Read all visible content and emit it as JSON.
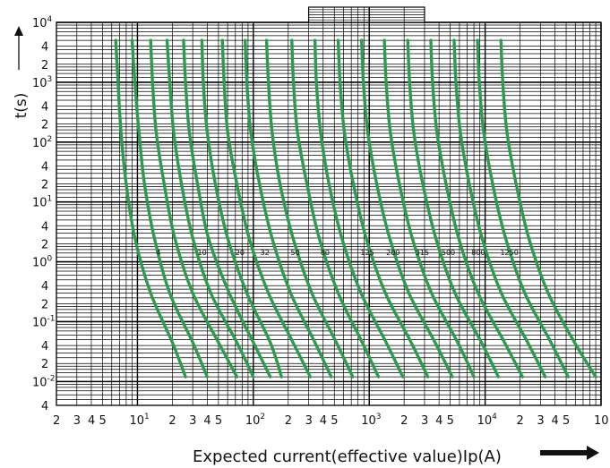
{
  "chart_data": {
    "type": "line",
    "title": "",
    "xlabel": "Expected current(effective value)Ip(A)",
    "ylabel": "t(s)",
    "x_scale": "log",
    "y_scale": "log",
    "xlim": [
      2,
      100000
    ],
    "ylim": [
      0.004,
      10000
    ],
    "grid": true,
    "x_tick_labels": [
      {
        "value": 2,
        "label": "2",
        "exp": ""
      },
      {
        "value": 3,
        "label": "3",
        "exp": ""
      },
      {
        "value": 4,
        "label": "4",
        "exp": ""
      },
      {
        "value": 5,
        "label": "5",
        "exp": ""
      },
      {
        "value": 10,
        "label": "10",
        "exp": "1"
      },
      {
        "value": 20,
        "label": "2",
        "exp": ""
      },
      {
        "value": 30,
        "label": "3",
        "exp": ""
      },
      {
        "value": 40,
        "label": "4",
        "exp": ""
      },
      {
        "value": 50,
        "label": "5",
        "exp": ""
      },
      {
        "value": 100,
        "label": "10",
        "exp": "2"
      },
      {
        "value": 200,
        "label": "2",
        "exp": ""
      },
      {
        "value": 300,
        "label": "3",
        "exp": ""
      },
      {
        "value": 400,
        "label": "4",
        "exp": ""
      },
      {
        "value": 500,
        "label": "5",
        "exp": ""
      },
      {
        "value": 1000,
        "label": "10",
        "exp": "3"
      },
      {
        "value": 2000,
        "label": "2",
        "exp": ""
      },
      {
        "value": 3000,
        "label": "3",
        "exp": ""
      },
      {
        "value": 4000,
        "label": "4",
        "exp": ""
      },
      {
        "value": 5000,
        "label": "5",
        "exp": ""
      },
      {
        "value": 10000,
        "label": "10",
        "exp": "4"
      },
      {
        "value": 20000,
        "label": "2",
        "exp": ""
      },
      {
        "value": 30000,
        "label": "3",
        "exp": ""
      },
      {
        "value": 40000,
        "label": "4",
        "exp": ""
      },
      {
        "value": 50000,
        "label": "5",
        "exp": ""
      },
      {
        "value": 100000,
        "label": "10",
        "exp": ""
      }
    ],
    "y_tick_labels": [
      {
        "value": 10000,
        "label": "10",
        "exp": "4"
      },
      {
        "value": 4000,
        "label": "4",
        "exp": ""
      },
      {
        "value": 2000,
        "label": "2",
        "exp": ""
      },
      {
        "value": 1000,
        "label": "10",
        "exp": "3"
      },
      {
        "value": 400,
        "label": "4",
        "exp": ""
      },
      {
        "value": 200,
        "label": "2",
        "exp": ""
      },
      {
        "value": 100,
        "label": "10",
        "exp": "2"
      },
      {
        "value": 40,
        "label": "4",
        "exp": ""
      },
      {
        "value": 20,
        "label": "2",
        "exp": ""
      },
      {
        "value": 10,
        "label": "10",
        "exp": "1"
      },
      {
        "value": 4,
        "label": "4",
        "exp": ""
      },
      {
        "value": 2,
        "label": "2",
        "exp": ""
      },
      {
        "value": 1,
        "label": "10",
        "exp": "0"
      },
      {
        "value": 0.4,
        "label": "4",
        "exp": ""
      },
      {
        "value": 0.2,
        "label": "2",
        "exp": ""
      },
      {
        "value": 0.1,
        "label": "10",
        "exp": "-1"
      },
      {
        "value": 0.04,
        "label": "4",
        "exp": ""
      },
      {
        "value": 0.02,
        "label": "2",
        "exp": ""
      },
      {
        "value": 0.01,
        "label": "10",
        "exp": "-2"
      },
      {
        "value": 0.004,
        "label": "4",
        "exp": ""
      }
    ],
    "curve_labels": [
      {
        "text": "4",
        "x": 14.5,
        "y": 1.3
      },
      {
        "text": "10",
        "x": 33,
        "y": 1.3
      },
      {
        "text": "20",
        "x": 70,
        "y": 1.3
      },
      {
        "text": "32",
        "x": 115,
        "y": 1.3
      },
      {
        "text": "50",
        "x": 210,
        "y": 1.3
      },
      {
        "text": "80",
        "x": 380,
        "y": 1.3
      },
      {
        "text": "125",
        "x": 840,
        "y": 1.3
      },
      {
        "text": "200",
        "x": 1400,
        "y": 1.3
      },
      {
        "text": "315",
        "x": 2500,
        "y": 1.3
      },
      {
        "text": "500",
        "x": 4200,
        "y": 1.3
      },
      {
        "text": "800",
        "x": 7600,
        "y": 1.3
      },
      {
        "text": "1250",
        "x": 13500,
        "y": 1.3
      }
    ],
    "series": [
      {
        "points": [
          [
            6.5,
            5000
          ],
          [
            6.8,
            1000
          ],
          [
            7.2,
            150
          ],
          [
            8,
            20
          ],
          [
            9.5,
            2.5
          ],
          [
            13,
            0.3
          ],
          [
            20,
            0.045
          ],
          [
            26,
            0.012
          ]
        ]
      },
      {
        "points": [
          [
            9,
            5000
          ],
          [
            9.5,
            1000
          ],
          [
            10.3,
            150
          ],
          [
            11.5,
            20
          ],
          [
            14,
            2.5
          ],
          [
            19,
            0.3
          ],
          [
            30,
            0.045
          ],
          [
            40,
            0.012
          ]
        ]
      },
      {
        "points": [
          [
            13,
            5000
          ],
          [
            13.5,
            1000
          ],
          [
            14.5,
            150
          ],
          [
            17,
            20
          ],
          [
            21,
            2.5
          ],
          [
            30,
            0.3
          ],
          [
            50,
            0.045
          ],
          [
            72,
            0.012
          ]
        ]
      },
      {
        "points": [
          [
            18,
            5000
          ],
          [
            19,
            1000
          ],
          [
            20.5,
            150
          ],
          [
            24,
            20
          ],
          [
            30,
            2.5
          ],
          [
            43,
            0.3
          ],
          [
            72,
            0.045
          ],
          [
            100,
            0.012
          ]
        ]
      },
      {
        "points": [
          [
            25,
            5000
          ],
          [
            26,
            1000
          ],
          [
            28,
            150
          ],
          [
            33,
            20
          ],
          [
            41,
            2.5
          ],
          [
            62,
            0.3
          ],
          [
            100,
            0.045
          ],
          [
            140,
            0.012
          ]
        ]
      },
      {
        "points": [
          [
            36,
            5000
          ],
          [
            37,
            1000
          ],
          [
            40,
            150
          ],
          [
            47,
            20
          ],
          [
            60,
            2.5
          ],
          [
            88,
            0.3
          ],
          [
            140,
            0.045
          ],
          [
            175,
            0.012
          ]
        ]
      },
      {
        "points": [
          [
            54,
            5000
          ],
          [
            56,
            1000
          ],
          [
            60,
            150
          ],
          [
            72,
            20
          ],
          [
            92,
            2.5
          ],
          [
            135,
            0.3
          ],
          [
            220,
            0.045
          ],
          [
            310,
            0.012
          ]
        ]
      },
      {
        "points": [
          [
            85,
            5000
          ],
          [
            88,
            1000
          ],
          [
            95,
            150
          ],
          [
            113,
            20
          ],
          [
            145,
            2.5
          ],
          [
            210,
            0.3
          ],
          [
            340,
            0.045
          ],
          [
            470,
            0.012
          ]
        ]
      },
      {
        "points": [
          [
            130,
            5000
          ],
          [
            135,
            1000
          ],
          [
            145,
            150
          ],
          [
            170,
            20
          ],
          [
            220,
            2.5
          ],
          [
            320,
            0.3
          ],
          [
            520,
            0.045
          ],
          [
            720,
            0.012
          ]
        ]
      },
      {
        "points": [
          [
            215,
            5000
          ],
          [
            222,
            1000
          ],
          [
            240,
            150
          ],
          [
            290,
            20
          ],
          [
            370,
            2.5
          ],
          [
            540,
            0.3
          ],
          [
            870,
            0.045
          ],
          [
            1200,
            0.012
          ]
        ]
      },
      {
        "points": [
          [
            340,
            5000
          ],
          [
            350,
            1000
          ],
          [
            380,
            150
          ],
          [
            450,
            20
          ],
          [
            580,
            2.5
          ],
          [
            850,
            0.3
          ],
          [
            1400,
            0.045
          ],
          [
            1950,
            0.012
          ]
        ]
      },
      {
        "points": [
          [
            540,
            5000
          ],
          [
            560,
            1000
          ],
          [
            610,
            150
          ],
          [
            730,
            20
          ],
          [
            940,
            2.5
          ],
          [
            1380,
            0.3
          ],
          [
            2300,
            0.045
          ],
          [
            3200,
            0.012
          ]
        ]
      },
      {
        "points": [
          [
            860,
            5000
          ],
          [
            890,
            1000
          ],
          [
            970,
            150
          ],
          [
            1160,
            20
          ],
          [
            1500,
            2.5
          ],
          [
            2200,
            0.3
          ],
          [
            3700,
            0.045
          ],
          [
            5200,
            0.012
          ]
        ]
      },
      {
        "points": [
          [
            1350,
            5000
          ],
          [
            1400,
            1000
          ],
          [
            1520,
            150
          ],
          [
            1820,
            20
          ],
          [
            2350,
            2.5
          ],
          [
            3450,
            0.3
          ],
          [
            5800,
            0.045
          ],
          [
            8000,
            0.012
          ]
        ]
      },
      {
        "points": [
          [
            2150,
            5000
          ],
          [
            2230,
            1000
          ],
          [
            2420,
            150
          ],
          [
            2900,
            20
          ],
          [
            3750,
            2.5
          ],
          [
            5500,
            0.3
          ],
          [
            9300,
            0.045
          ],
          [
            13000,
            0.012
          ]
        ]
      },
      {
        "points": [
          [
            3400,
            5000
          ],
          [
            3520,
            1000
          ],
          [
            3830,
            150
          ],
          [
            4600,
            20
          ],
          [
            5900,
            2.5
          ],
          [
            8700,
            0.3
          ],
          [
            14700,
            0.045
          ],
          [
            21000,
            0.012
          ]
        ]
      },
      {
        "points": [
          [
            5400,
            5000
          ],
          [
            5600,
            1000
          ],
          [
            6100,
            150
          ],
          [
            7300,
            20
          ],
          [
            9400,
            2.5
          ],
          [
            13800,
            0.3
          ],
          [
            23300,
            0.045
          ],
          [
            33000,
            0.012
          ]
        ]
      },
      {
        "points": [
          [
            8600,
            5000
          ],
          [
            8900,
            1000
          ],
          [
            9700,
            150
          ],
          [
            11600,
            20
          ],
          [
            15000,
            2.5
          ],
          [
            22000,
            0.3
          ],
          [
            37000,
            0.045
          ],
          [
            52000,
            0.012
          ]
        ]
      },
      {
        "points": [
          [
            13700,
            5000
          ],
          [
            14200,
            1000
          ],
          [
            15400,
            150
          ],
          [
            18500,
            20
          ],
          [
            23800,
            2.5
          ],
          [
            35000,
            0.3
          ],
          [
            59000,
            0.045
          ],
          [
            90000,
            0.012
          ]
        ]
      }
    ],
    "colors": {
      "curve": "#2e9a4e",
      "grid": "#000000"
    }
  }
}
